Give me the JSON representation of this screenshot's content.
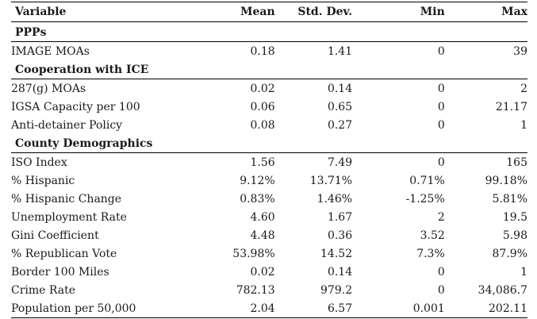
{
  "table": {
    "headers": {
      "variable": "Variable",
      "mean": "Mean",
      "sd": "Std. Dev.",
      "min": "Min",
      "max": "Max"
    },
    "groups": [
      {
        "title": "PPPs",
        "rows": [
          {
            "variable": "IMAGE MOAs",
            "mean": "0.18",
            "sd": "1.41",
            "min": "0",
            "max": "39"
          }
        ]
      },
      {
        "title": "Cooperation with ICE",
        "rows": [
          {
            "variable": "287(g) MOAs",
            "mean": "0.02",
            "sd": "0.14",
            "min": "0",
            "max": "2"
          },
          {
            "variable": "IGSA Capacity per 100",
            "mean": "0.06",
            "sd": "0.65",
            "min": "0",
            "max": "21.17"
          },
          {
            "variable": "Anti-detainer Policy",
            "mean": "0.08",
            "sd": "0.27",
            "min": "0",
            "max": "1"
          }
        ]
      },
      {
        "title": "County Demographics",
        "rows": [
          {
            "variable": "ISO Index",
            "mean": "1.56",
            "sd": "7.49",
            "min": "0",
            "max": "165"
          },
          {
            "variable": "% Hispanic",
            "mean": "9.12%",
            "sd": "13.71%",
            "min": "0.71%",
            "max": "99.18%"
          },
          {
            "variable": "% Hispanic Change",
            "mean": "0.83%",
            "sd": "1.46%",
            "min": "-1.25%",
            "max": "5.81%"
          },
          {
            "variable": "Unemployment Rate",
            "mean": "4.60",
            "sd": "1.67",
            "min": "2",
            "max": "19.5"
          },
          {
            "variable": "Gini Coefficient",
            "mean": "4.48",
            "sd": "0.36",
            "min": "3.52",
            "max": "5.98"
          },
          {
            "variable": "% Republican Vote",
            "mean": "53.98%",
            "sd": "14.52",
            "min": "7.3%",
            "max": "87.9%"
          },
          {
            "variable": "Border 100 Miles",
            "mean": "0.02",
            "sd": "0.14",
            "min": "0",
            "max": "1"
          },
          {
            "variable": "Crime Rate",
            "mean": "782.13",
            "sd": "979.2",
            "min": "0",
            "max": "34,086.7"
          },
          {
            "variable": "Population per 50,000",
            "mean": "2.04",
            "sd": "6.57",
            "min": "0.001",
            "max": "202.11"
          }
        ]
      }
    ]
  }
}
